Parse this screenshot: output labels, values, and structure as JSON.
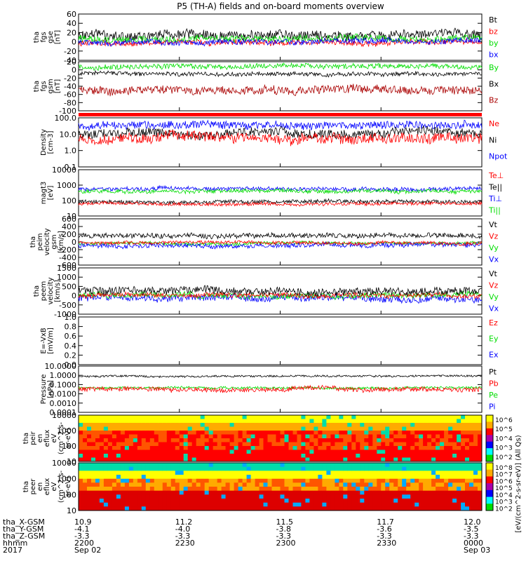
{
  "title": "P5 (TH-A) fields and on-board moments overview",
  "colors": {
    "black": "#000000",
    "red": "#ff0000",
    "green": "#00dd00",
    "blue": "#0000ff",
    "darkred": "#aa0000",
    "bg": "#ffffff"
  },
  "chart_data": [
    {
      "id": "fgs_gse",
      "type": "line",
      "ylabel": [
        "tha",
        "fgs",
        "gse",
        "[nT]"
      ],
      "yticks": [
        "60",
        "40",
        "20",
        "0",
        "-20",
        "-40"
      ],
      "ylim": [
        -40,
        60
      ],
      "legend": [
        {
          "name": "Bt",
          "color": "black"
        },
        {
          "name": "bz",
          "color": "red"
        },
        {
          "name": "by",
          "color": "green"
        },
        {
          "name": "bx",
          "color": "blue"
        }
      ],
      "series": [
        {
          "name": "Bt",
          "color": "black",
          "base": 14,
          "amp": 10,
          "seed": 1
        },
        {
          "name": "bz",
          "color": "red",
          "base": -2,
          "amp": 6,
          "seed": 2
        },
        {
          "name": "by",
          "color": "green",
          "base": 8,
          "amp": 7,
          "seed": 3
        },
        {
          "name": "bx",
          "color": "blue",
          "base": 0,
          "amp": 6,
          "seed": 4
        }
      ]
    },
    {
      "id": "fgs_gsm",
      "type": "line",
      "ylabel": [
        "tha",
        "fgs",
        "gsm",
        "[nT]"
      ],
      "yticks": [
        "20",
        "0",
        "-20",
        "-40",
        "-60",
        "-80",
        "-100"
      ],
      "ylim": [
        -100,
        20
      ],
      "legend": [
        {
          "name": "By",
          "color": "green"
        },
        {
          "name": "Bx",
          "color": "black"
        },
        {
          "name": "Bz",
          "color": "darkred"
        }
      ],
      "series": [
        {
          "name": "By",
          "color": "green",
          "base": 8,
          "amp": 6,
          "seed": 5
        },
        {
          "name": "Bx",
          "color": "black",
          "base": -10,
          "amp": 5,
          "seed": 6
        },
        {
          "name": "Bz",
          "color": "darkred",
          "base": -50,
          "amp": 10,
          "seed": 7
        }
      ]
    },
    {
      "id": "density",
      "type": "line",
      "log": true,
      "ylabel": [
        "Density",
        "[cm-3]"
      ],
      "yticks": [
        "100.0",
        "10.0",
        "1.0",
        "0.1"
      ],
      "ylim": [
        0.1,
        200
      ],
      "legend": [
        {
          "name": "Ne",
          "color": "red"
        },
        {
          "name": "Ni",
          "color": "black"
        },
        {
          "name": "Npot",
          "color": "blue"
        }
      ],
      "series": [
        {
          "name": "Npot",
          "color": "blue",
          "base": 1.8,
          "amp": 0.25,
          "seed": 8
        },
        {
          "name": "Ni",
          "color": "black",
          "base": 1.2,
          "amp": 0.3,
          "seed": 9
        },
        {
          "name": "Ne",
          "color": "red",
          "base": 0.9,
          "amp": 0.35,
          "seed": 10
        }
      ]
    },
    {
      "id": "temperature",
      "type": "line",
      "log": true,
      "ylabel": [
        "magt3",
        "[eV]"
      ],
      "yticks": [
        "10000",
        "1000",
        "100",
        "10"
      ],
      "ylim": [
        10,
        10000
      ],
      "legend": [
        {
          "name": "Te⊥",
          "color": "red"
        },
        {
          "name": "Te||",
          "color": "black"
        },
        {
          "name": "Ti⊥",
          "color": "blue"
        },
        {
          "name": "Ti||",
          "color": "green"
        }
      ],
      "series": [
        {
          "name": "Ti⊥",
          "color": "blue",
          "base": 2.75,
          "amp": 0.12,
          "seed": 11
        },
        {
          "name": "Ti||",
          "color": "green",
          "base": 2.6,
          "amp": 0.12,
          "seed": 12
        },
        {
          "name": "Te||",
          "color": "black",
          "base": 1.9,
          "amp": 0.12,
          "seed": 13
        },
        {
          "name": "Te⊥",
          "color": "red",
          "base": 1.78,
          "amp": 0.1,
          "seed": 14
        }
      ]
    },
    {
      "id": "peim_velocity",
      "type": "line",
      "ylabel": [
        "tha",
        "peim",
        "velocity",
        "gsm",
        "[km/s]"
      ],
      "yticks": [
        "600",
        "400",
        "200",
        "0",
        "-200",
        "-400",
        "-600"
      ],
      "ylim": [
        -600,
        600
      ],
      "legend": [
        {
          "name": "Vt",
          "color": "black"
        },
        {
          "name": "Vz",
          "color": "red"
        },
        {
          "name": "Vy",
          "color": "green"
        },
        {
          "name": "Vx",
          "color": "blue"
        }
      ],
      "series": [
        {
          "name": "Vt",
          "color": "black",
          "base": 160,
          "amp": 60,
          "seed": 15
        },
        {
          "name": "Vy",
          "color": "green",
          "base": -40,
          "amp": 40,
          "seed": 16
        },
        {
          "name": "Vx",
          "color": "blue",
          "base": -90,
          "amp": 60,
          "seed": 17
        },
        {
          "name": "Vz",
          "color": "red",
          "base": -20,
          "amp": 40,
          "seed": 18
        }
      ]
    },
    {
      "id": "peem_velocity",
      "type": "line",
      "ylabel": [
        "tha",
        "peem",
        "velocity",
        "[km/s]"
      ],
      "yticks": [
        "1500",
        "1000",
        "500",
        "0",
        "-500",
        "-1000"
      ],
      "ylim": [
        -1000,
        1500
      ],
      "legend": [
        {
          "name": "Vt",
          "color": "black"
        },
        {
          "name": "Vz",
          "color": "red"
        },
        {
          "name": "Vy",
          "color": "green"
        },
        {
          "name": "Vx",
          "color": "blue"
        }
      ],
      "series": [
        {
          "name": "Vx",
          "color": "blue",
          "base": -150,
          "amp": 180,
          "seed": 19
        },
        {
          "name": "Vy",
          "color": "green",
          "base": 0,
          "amp": 150,
          "seed": 20
        },
        {
          "name": "Vz",
          "color": "red",
          "base": 0,
          "amp": 120,
          "seed": 21
        },
        {
          "name": "Vt",
          "color": "black",
          "base": 250,
          "amp": 200,
          "seed": 22
        }
      ]
    },
    {
      "id": "efield",
      "type": "line",
      "ylabel": [
        "E=-VxB",
        "[mV/m]"
      ],
      "yticks": [
        "1.0",
        "0.8",
        "0.6",
        "0.4",
        "0.2",
        "0.0"
      ],
      "ylim": [
        0,
        1
      ],
      "legend": [
        {
          "name": "Ez",
          "color": "red"
        },
        {
          "name": "Ey",
          "color": "green"
        },
        {
          "name": "Ex",
          "color": "blue"
        }
      ],
      "series": []
    },
    {
      "id": "pressure",
      "type": "line",
      "log": true,
      "ylabel": [
        "Pressure",
        "[nPa]"
      ],
      "yticks": [
        "10.0000",
        "1.0000",
        "0.1000",
        "0.0100",
        "0.0010",
        "0.0001"
      ],
      "ylim": [
        0.0001,
        10
      ],
      "legend": [
        {
          "name": "Pt",
          "color": "black"
        },
        {
          "name": "Pb",
          "color": "red"
        },
        {
          "name": "Pe",
          "color": "green"
        },
        {
          "name": "Pi",
          "color": "blue"
        }
      ],
      "series": [
        {
          "name": "Pt",
          "color": "black",
          "base": -0.1,
          "amp": 0.1,
          "seed": 23
        },
        {
          "name": "Pe",
          "color": "green",
          "base": -1.35,
          "amp": 0.12,
          "seed": 24
        },
        {
          "name": "Pb",
          "color": "red",
          "base": -1.5,
          "amp": 0.25,
          "seed": 25
        }
      ]
    },
    {
      "id": "peir_spec",
      "type": "heatmap",
      "ylabel": [
        "tha",
        "peir",
        "en",
        "eflux",
        "eV",
        "(cm^2-s-",
        "sr-eV)"
      ],
      "yticks": [
        "10000",
        "1000",
        "100",
        "10"
      ],
      "colorbar": [
        "10^6",
        "10^5",
        "10^4",
        "10^3",
        "10^2"
      ],
      "seed": 31
    },
    {
      "id": "peer_spec",
      "type": "heatmap",
      "ylabel": [
        "tha",
        "peer",
        "en",
        "eflux",
        "eV",
        "(cm^2-s-",
        "sr-eV)"
      ],
      "yticks": [
        "10000",
        "1000",
        "100",
        "10"
      ],
      "colorbar": [
        "10^8",
        "10^7",
        "10^6",
        "10^5",
        "10^4",
        "10^3",
        "10^2"
      ],
      "colorbar_label": "[eV/(cm^2-s-sr-eV)] (All Qs)",
      "seed": 37
    }
  ],
  "ephemeris": {
    "row_labels": [
      "tha_X-GSM",
      "tha_Y-GSM",
      "tha_Z-GSM",
      "hhmm",
      "2017"
    ],
    "columns": [
      {
        "values": [
          "10.9",
          "-4.1",
          "-3.3",
          "2200",
          "Sep 02"
        ]
      },
      {
        "values": [
          "11.2",
          "-4.0",
          "-3.3",
          "2230",
          ""
        ]
      },
      {
        "values": [
          "11.5",
          "-3.8",
          "-3.3",
          "2300",
          ""
        ]
      },
      {
        "values": [
          "11.7",
          "-3.6",
          "-3.3",
          "2330",
          ""
        ]
      },
      {
        "values": [
          "12.0",
          "-3.5",
          "-3.3",
          "0000",
          "Sep 03"
        ]
      }
    ]
  }
}
